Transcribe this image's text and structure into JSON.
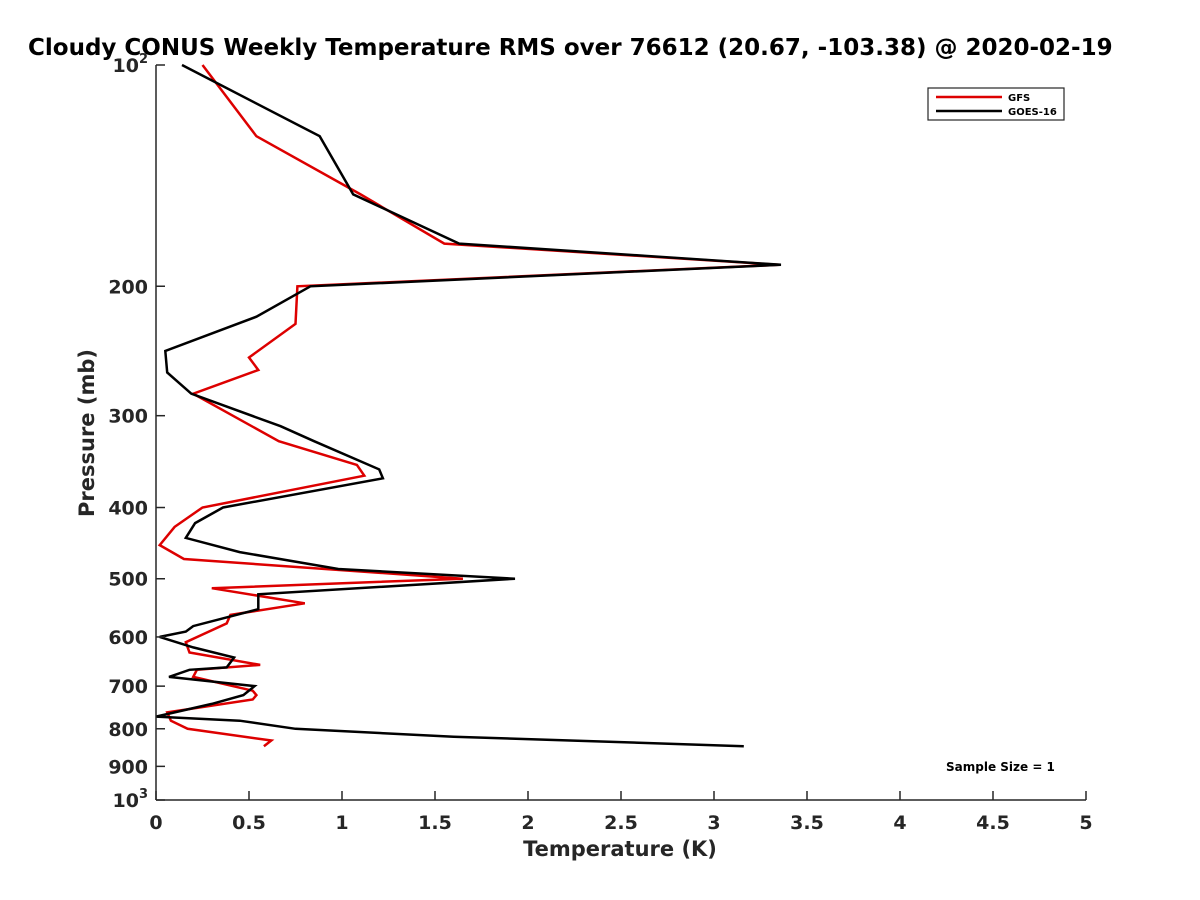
{
  "chart_data": {
    "type": "line",
    "title": "Cloudy CONUS Weekly Temperature RMS over 76612 (20.67, -103.38) @ 2020-02-19",
    "xlabel": "Temperature (K)",
    "ylabel": "Pressure (mb)",
    "xlim": [
      0,
      5
    ],
    "ylim": [
      100,
      1000
    ],
    "yscale": "log",
    "y_reversed": true,
    "x_ticks": [
      0,
      0.5,
      1,
      1.5,
      2,
      2.5,
      3,
      3.5,
      4,
      4.5,
      5
    ],
    "x_tick_labels": [
      "0",
      "0.5",
      "1",
      "1.5",
      "2",
      "2.5",
      "3",
      "3.5",
      "4",
      "4.5",
      "5"
    ],
    "y_ticks": [
      100,
      200,
      300,
      400,
      500,
      600,
      700,
      800,
      900,
      1000
    ],
    "y_tick_labels": [
      {
        "base": "10",
        "exp": "2"
      },
      {
        "base": "200",
        "exp": ""
      },
      {
        "base": "300",
        "exp": ""
      },
      {
        "base": "400",
        "exp": ""
      },
      {
        "base": "500",
        "exp": ""
      },
      {
        "base": "600",
        "exp": ""
      },
      {
        "base": "700",
        "exp": ""
      },
      {
        "base": "800",
        "exp": ""
      },
      {
        "base": "900",
        "exp": ""
      },
      {
        "base": "10",
        "exp": "3"
      }
    ],
    "legend_position": "top-right",
    "annotation": "Sample Size = 1",
    "series": [
      {
        "name": "GFS",
        "color": "#dd0000",
        "points": [
          [
            0.25,
            100
          ],
          [
            0.54,
            125
          ],
          [
            1.1,
            150
          ],
          [
            1.55,
            175
          ],
          [
            3.35,
            187
          ],
          [
            0.76,
            200
          ],
          [
            0.75,
            225
          ],
          [
            0.5,
            250
          ],
          [
            0.55,
            260
          ],
          [
            0.2,
            280
          ],
          [
            0.66,
            325
          ],
          [
            1.08,
            350
          ],
          [
            1.12,
            362
          ],
          [
            0.25,
            400
          ],
          [
            0.1,
            425
          ],
          [
            0.02,
            450
          ],
          [
            0.15,
            470
          ],
          [
            1.65,
            500
          ],
          [
            0.3,
            515
          ],
          [
            0.8,
            540
          ],
          [
            0.4,
            560
          ],
          [
            0.38,
            575
          ],
          [
            0.16,
            610
          ],
          [
            0.18,
            630
          ],
          [
            0.56,
            655
          ],
          [
            0.22,
            665
          ],
          [
            0.2,
            680
          ],
          [
            0.52,
            710
          ],
          [
            0.54,
            720
          ],
          [
            0.52,
            730
          ],
          [
            0.06,
            760
          ],
          [
            0.08,
            780
          ],
          [
            0.17,
            800
          ],
          [
            0.62,
            830
          ],
          [
            0.58,
            845
          ]
        ]
      },
      {
        "name": "GOES-16",
        "color": "#000000",
        "points": [
          [
            0.14,
            100
          ],
          [
            0.88,
            125
          ],
          [
            1.06,
            150
          ],
          [
            1.63,
            175
          ],
          [
            3.36,
            187
          ],
          [
            0.83,
            200
          ],
          [
            0.54,
            220
          ],
          [
            0.05,
            245
          ],
          [
            0.06,
            262
          ],
          [
            0.19,
            280
          ],
          [
            0.67,
            310
          ],
          [
            0.85,
            325
          ],
          [
            1.2,
            355
          ],
          [
            1.22,
            365
          ],
          [
            0.36,
            400
          ],
          [
            0.21,
            420
          ],
          [
            0.16,
            440
          ],
          [
            0.45,
            460
          ],
          [
            0.98,
            485
          ],
          [
            1.93,
            500
          ],
          [
            0.55,
            525
          ],
          [
            0.55,
            550
          ],
          [
            0.2,
            580
          ],
          [
            0.16,
            590
          ],
          [
            0.02,
            600
          ],
          [
            0.2,
            620
          ],
          [
            0.42,
            640
          ],
          [
            0.38,
            660
          ],
          [
            0.18,
            665
          ],
          [
            0.07,
            680
          ],
          [
            0.53,
            700
          ],
          [
            0.47,
            720
          ],
          [
            0.3,
            740
          ],
          [
            0.0,
            770
          ],
          [
            0.45,
            780
          ],
          [
            0.75,
            800
          ],
          [
            1.6,
            820
          ],
          [
            3.16,
            845
          ]
        ]
      }
    ]
  }
}
